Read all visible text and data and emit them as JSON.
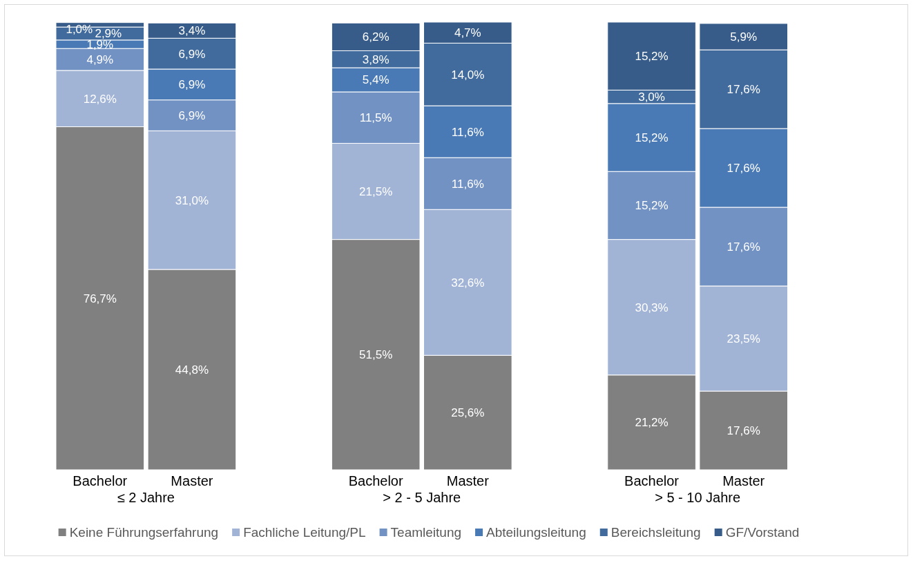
{
  "chart_data": {
    "type": "bar",
    "stacked": true,
    "categories": [
      "Bachelor",
      "Master",
      null,
      "Bachelor",
      "Master",
      null,
      "Bachelor",
      "Master"
    ],
    "annotations": [
      "≤ 2 Jahre",
      "> 2 - 5 Jahre",
      "> 5 - 10 Jahre"
    ],
    "legend": "bottom",
    "series": [
      {
        "name": "Keine Führungserfahrung",
        "color": "#808080",
        "values": [
          76.7,
          44.8,
          null,
          51.5,
          25.6,
          null,
          21.2,
          17.6
        ],
        "value_labels": [
          "76,7%",
          "44,8%",
          null,
          "51,5%",
          "25,6%",
          null,
          "21,2%",
          "17,6%"
        ]
      },
      {
        "name": "Fachliche Leitung/PL",
        "color": "#a2b4d6",
        "values": [
          12.6,
          31.0,
          null,
          21.5,
          32.6,
          null,
          30.3,
          23.5
        ],
        "value_labels": [
          "12,6%",
          "31,0%",
          null,
          "21,5%",
          "32,6%",
          null,
          "30,3%",
          "23,5%"
        ]
      },
      {
        "name": "Teamleitung",
        "color": "#7392c4",
        "values": [
          4.9,
          6.9,
          null,
          11.5,
          11.6,
          null,
          15.2,
          17.6
        ],
        "value_labels": [
          "4,9%",
          "6,9%",
          null,
          "11,5%",
          "11,6%",
          null,
          "15,2%",
          "17,6%"
        ]
      },
      {
        "name": "Abteilungsleitung",
        "color": "#4a7ab5",
        "values": [
          1.9,
          6.9,
          null,
          5.4,
          11.6,
          null,
          15.2,
          17.6
        ],
        "value_labels": [
          "1,9%",
          "6,9%",
          null,
          "5,4%",
          "11,6%",
          null,
          "15,2%",
          "17,6%"
        ]
      },
      {
        "name": "Bereichsleitung",
        "color": "#416a9d",
        "values": [
          2.9,
          6.9,
          null,
          3.8,
          14.0,
          null,
          3.0,
          17.6
        ],
        "value_labels": [
          "2,9%",
          "6,9%",
          null,
          "3,8%",
          "14,0%",
          null,
          "3,0%",
          "17,6%"
        ]
      },
      {
        "name": "GF/Vorstand",
        "color": "#375c8a",
        "values": [
          1.0,
          3.4,
          null,
          6.2,
          4.7,
          null,
          15.2,
          5.9
        ],
        "value_labels": [
          "1,0%",
          "3,4%",
          null,
          "6,2%",
          "4,7%",
          null,
          "15,2%",
          "5,9%"
        ]
      }
    ]
  }
}
